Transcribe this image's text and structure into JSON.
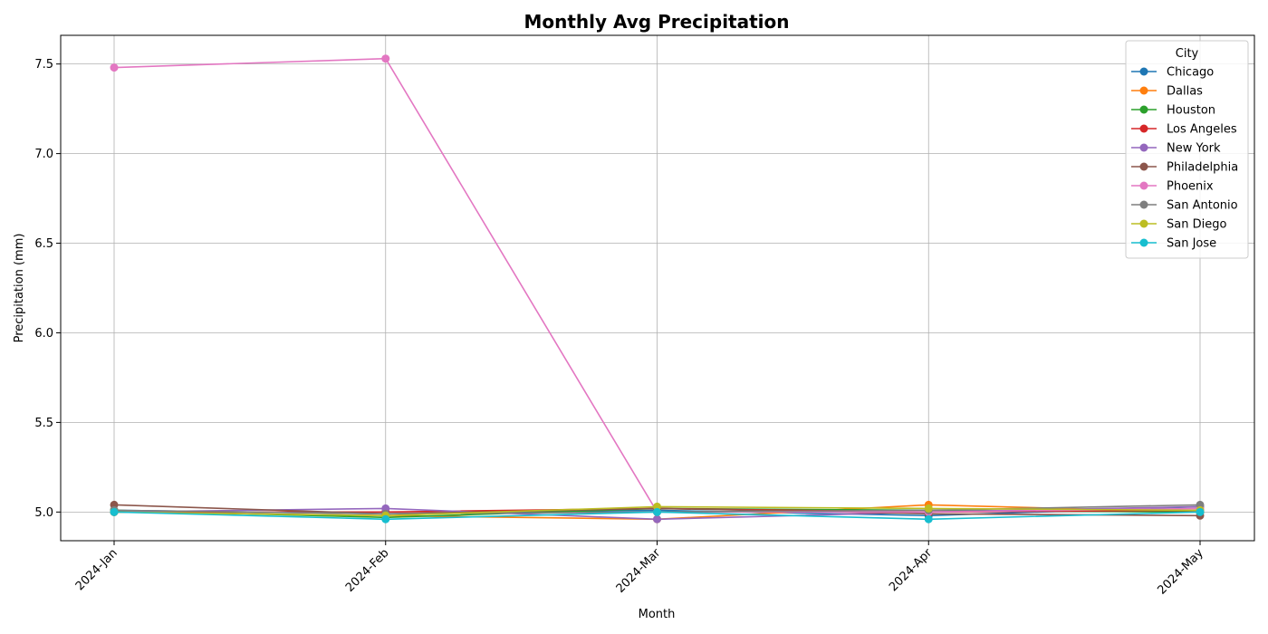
{
  "chart_data": {
    "type": "line",
    "title": "Monthly Avg Precipitation",
    "xlabel": "Month",
    "ylabel": "Precipitation (mm)",
    "categories": [
      "2024-Jan",
      "2024-Feb",
      "2024-Mar",
      "2024-Apr",
      "2024-May"
    ],
    "ylim": [
      4.84,
      7.66
    ],
    "yticks": [
      "5.0",
      "5.5",
      "6.0",
      "6.5",
      "7.0",
      "7.5"
    ],
    "grid": true,
    "legend_title": "City",
    "legend_position": "top-right",
    "series": [
      {
        "name": "Chicago",
        "color": "#1f77b4",
        "values": [
          5.01,
          4.99,
          5.01,
          4.98,
          5.03
        ]
      },
      {
        "name": "Dallas",
        "color": "#ff7f0e",
        "values": [
          5.0,
          4.98,
          4.96,
          5.04,
          5.0
        ]
      },
      {
        "name": "Houston",
        "color": "#2ca02c",
        "values": [
          5.01,
          4.97,
          5.02,
          5.01,
          5.0
        ]
      },
      {
        "name": "Los Angeles",
        "color": "#d62728",
        "values": [
          5.0,
          5.0,
          5.02,
          5.0,
          5.01
        ]
      },
      {
        "name": "New York",
        "color": "#9467bd",
        "values": [
          5.0,
          5.02,
          4.96,
          5.0,
          5.03
        ]
      },
      {
        "name": "Philadelphia",
        "color": "#8c564b",
        "values": [
          5.04,
          4.99,
          5.02,
          4.99,
          4.98
        ]
      },
      {
        "name": "Phoenix",
        "color": "#e377c2",
        "values": [
          7.48,
          7.53,
          5.0,
          5.0,
          5.02
        ]
      },
      {
        "name": "San Antonio",
        "color": "#7f7f7f",
        "values": [
          5.01,
          4.99,
          5.0,
          5.01,
          5.04
        ]
      },
      {
        "name": "San Diego",
        "color": "#bcbd22",
        "values": [
          5.0,
          4.98,
          5.03,
          5.02,
          5.01
        ]
      },
      {
        "name": "San Jose",
        "color": "#17becf",
        "values": [
          5.0,
          4.96,
          5.0,
          4.96,
          5.0
        ]
      }
    ]
  }
}
